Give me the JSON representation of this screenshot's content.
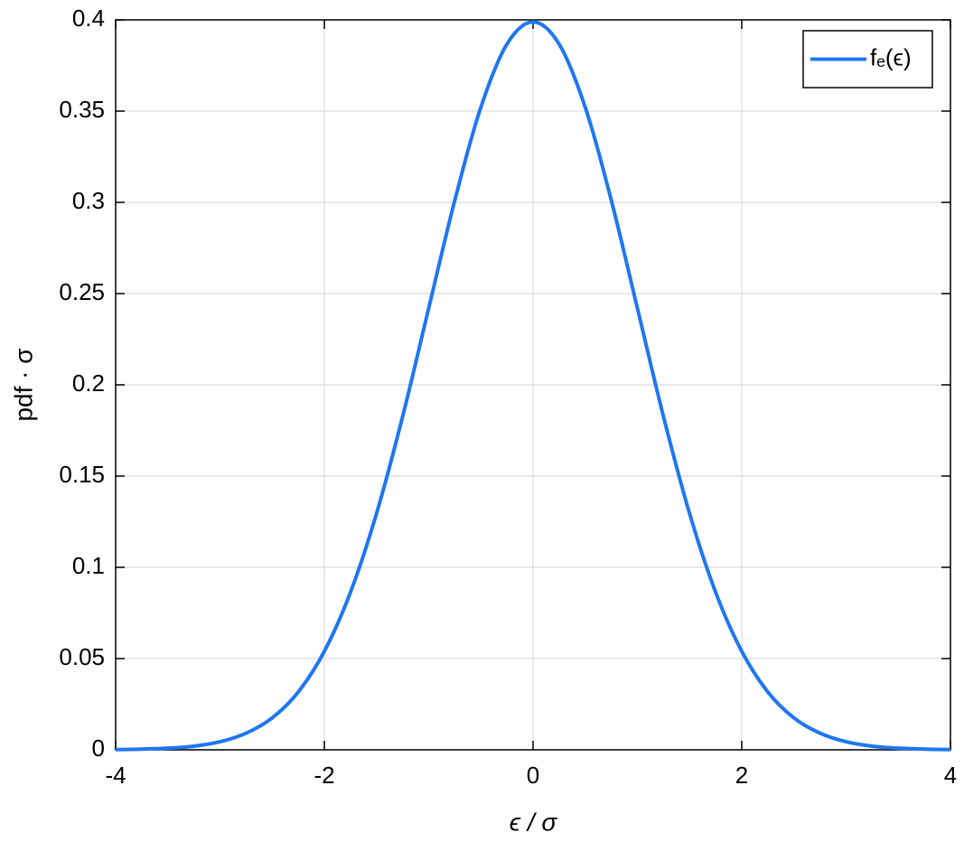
{
  "chart_data": {
    "type": "line",
    "x_label": "ϵ / σ",
    "y_label": "pdf · σ",
    "x": [
      -4,
      -3.75,
      -3.5,
      -3.25,
      -3,
      -2.75,
      -2.5,
      -2.25,
      -2,
      -1.75,
      -1.5,
      -1.25,
      -1,
      -0.75,
      -0.5,
      -0.25,
      0,
      0.25,
      0.5,
      0.75,
      1,
      1.25,
      1.5,
      1.75,
      2,
      2.25,
      2.5,
      2.75,
      3,
      3.25,
      3.5,
      3.75,
      4
    ],
    "series": [
      {
        "name": "fₑ(ϵ)",
        "color": "#1f77f0",
        "values": [
          0.0001,
          0.0004,
          0.0009,
          0.002,
          0.0044,
          0.0091,
          0.0175,
          0.0317,
          0.054,
          0.0863,
          0.1295,
          0.1826,
          0.242,
          0.3011,
          0.3521,
          0.3867,
          0.3989,
          0.3867,
          0.3521,
          0.3011,
          0.242,
          0.1826,
          0.1295,
          0.0863,
          0.054,
          0.0317,
          0.0175,
          0.0091,
          0.0044,
          0.002,
          0.0009,
          0.0004,
          0.0001
        ]
      }
    ],
    "xlim": [
      -4,
      4
    ],
    "xticks": [
      -4,
      -2,
      0,
      2,
      4
    ],
    "ylim": [
      0,
      0.4
    ],
    "yticks": [
      0,
      0.05,
      0.1,
      0.15,
      0.2,
      0.25,
      0.3,
      0.35,
      0.4
    ],
    "grid": true,
    "legend": "upper right"
  }
}
